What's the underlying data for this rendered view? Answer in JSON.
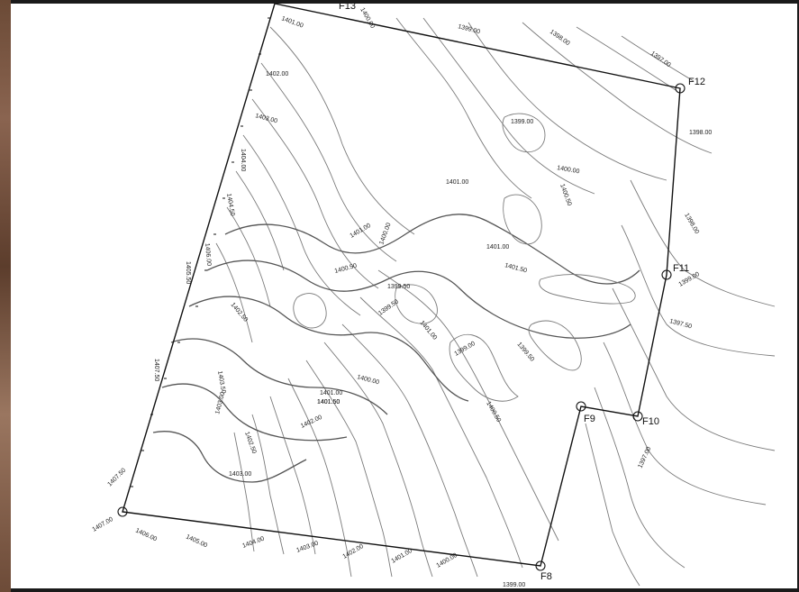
{
  "points": [
    {
      "id": "F13",
      "label": "F13"
    },
    {
      "id": "F12",
      "label": "F12"
    },
    {
      "id": "F11",
      "label": "F11"
    },
    {
      "id": "F10",
      "label": "F10"
    },
    {
      "id": "F9",
      "label": "F9"
    },
    {
      "id": "F8",
      "label": "F8"
    }
  ],
  "elevations": {
    "e1": "1401.00",
    "e2": "1402.00",
    "e3": "1403.00",
    "e4": "1404.00",
    "e5": "1404.50",
    "e6": "1405.50",
    "e7": "1406.00",
    "e8": "1407.50",
    "e9": "1407.50",
    "e10": "1407.00",
    "e11": "1406.00",
    "e12": "1405.00",
    "e13": "1404.00",
    "e14": "1403.00",
    "e15": "1402.00",
    "e16": "1401.00",
    "e17": "1400.00",
    "e18": "1399.00",
    "e19": "1399.00",
    "e20": "1398.00",
    "e21": "1397.00",
    "e22": "1398.00",
    "e23": "1398.00",
    "e24": "1399.00",
    "e25": "1400.00",
    "e26": "1400.50",
    "e27": "1401.00",
    "e28": "1401.00",
    "e29": "1400.00",
    "e30": "1401.00",
    "e31": "1400.50",
    "e32": "1399.50",
    "e33": "1399.50",
    "e34": "1401.00",
    "e35": "1401.50",
    "e36": "1402.50",
    "e37": "1401.50",
    "e38": "1399.00",
    "e39": "1399.50",
    "e40": "1399.00",
    "e41": "1397.50",
    "e42": "1400.00",
    "e43": "1401.00",
    "e44": "1401.50",
    "e45": "1402.00",
    "e46": "1403.50",
    "e47": "1403.00",
    "e48": "1402.50",
    "e49": "1403.00",
    "e50": "1400.50",
    "e51": "1397.00",
    "e52": "1400.00"
  },
  "colors": {
    "boundary": "#111111",
    "contour": "#7a7a7a",
    "background": "#ffffff"
  }
}
